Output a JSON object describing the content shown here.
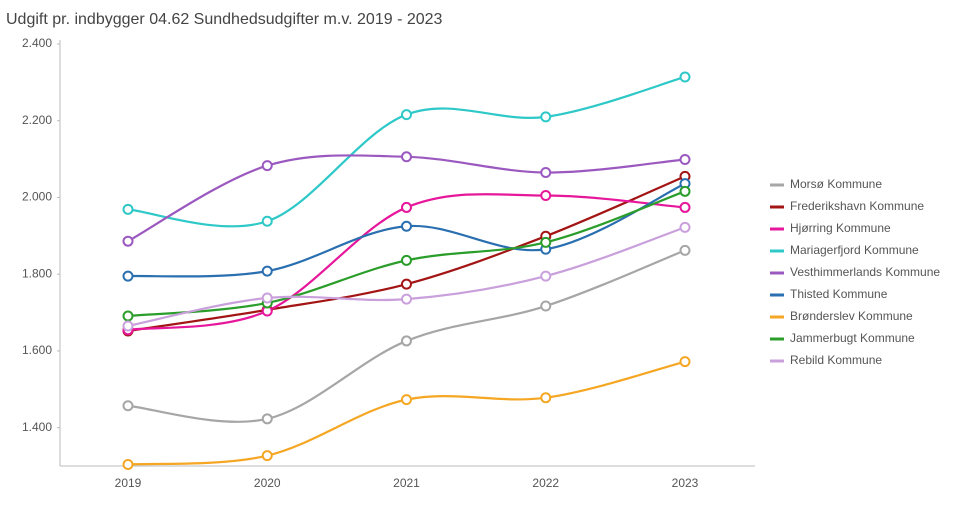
{
  "chart_data": {
    "type": "line",
    "title": "Udgift pr. indbygger 04.62 Sundhedsudgifter m.v. 2019 - 2023",
    "categories": [
      "2019",
      "2020",
      "2021",
      "2022",
      "2023"
    ],
    "ylim": [
      1300,
      2400
    ],
    "yticks": [
      {
        "value": 1400,
        "label": "1.400"
      },
      {
        "value": 1600,
        "label": "1.600"
      },
      {
        "value": 1800,
        "label": "1.800"
      },
      {
        "value": 2000,
        "label": "2.000"
      },
      {
        "value": 2200,
        "label": "2.200"
      },
      {
        "value": 2400,
        "label": "2.400"
      }
    ],
    "legend": "right",
    "series": [
      {
        "name": "Morsø Kommune",
        "color": "#a6a6a6",
        "values": [
          1457,
          1423,
          1626,
          1717,
          1862
        ]
      },
      {
        "name": "Frederikshavn Kommune",
        "color": "#a31515",
        "values": [
          1652,
          1707,
          1774,
          1899,
          2055
        ]
      },
      {
        "name": "Hjørring Kommune",
        "color": "#e6179b",
        "values": [
          1655,
          1704,
          1974,
          2005,
          1974
        ]
      },
      {
        "name": "Mariagerfjord Kommune",
        "color": "#2ec8c8",
        "values": [
          1969,
          1938,
          2216,
          2210,
          2314
        ]
      },
      {
        "name": "Vesthimmerlands Kommune",
        "color": "#9b59c0",
        "values": [
          1886,
          2083,
          2106,
          2065,
          2099
        ]
      },
      {
        "name": "Thisted Kommune",
        "color": "#2a6fb0",
        "values": [
          1795,
          1808,
          1925,
          1865,
          2036
        ]
      },
      {
        "name": "Brønderslev Kommune",
        "color": "#f5a623",
        "values": [
          1304,
          1327,
          1473,
          1478,
          1572
        ]
      },
      {
        "name": "Jammerbugt Kommune",
        "color": "#2a9d2a",
        "values": [
          1691,
          1725,
          1836,
          1883,
          2016
        ]
      },
      {
        "name": "Rebild Kommune",
        "color": "#c9a0dc",
        "values": [
          1665,
          1738,
          1735,
          1795,
          1922
        ]
      }
    ]
  }
}
